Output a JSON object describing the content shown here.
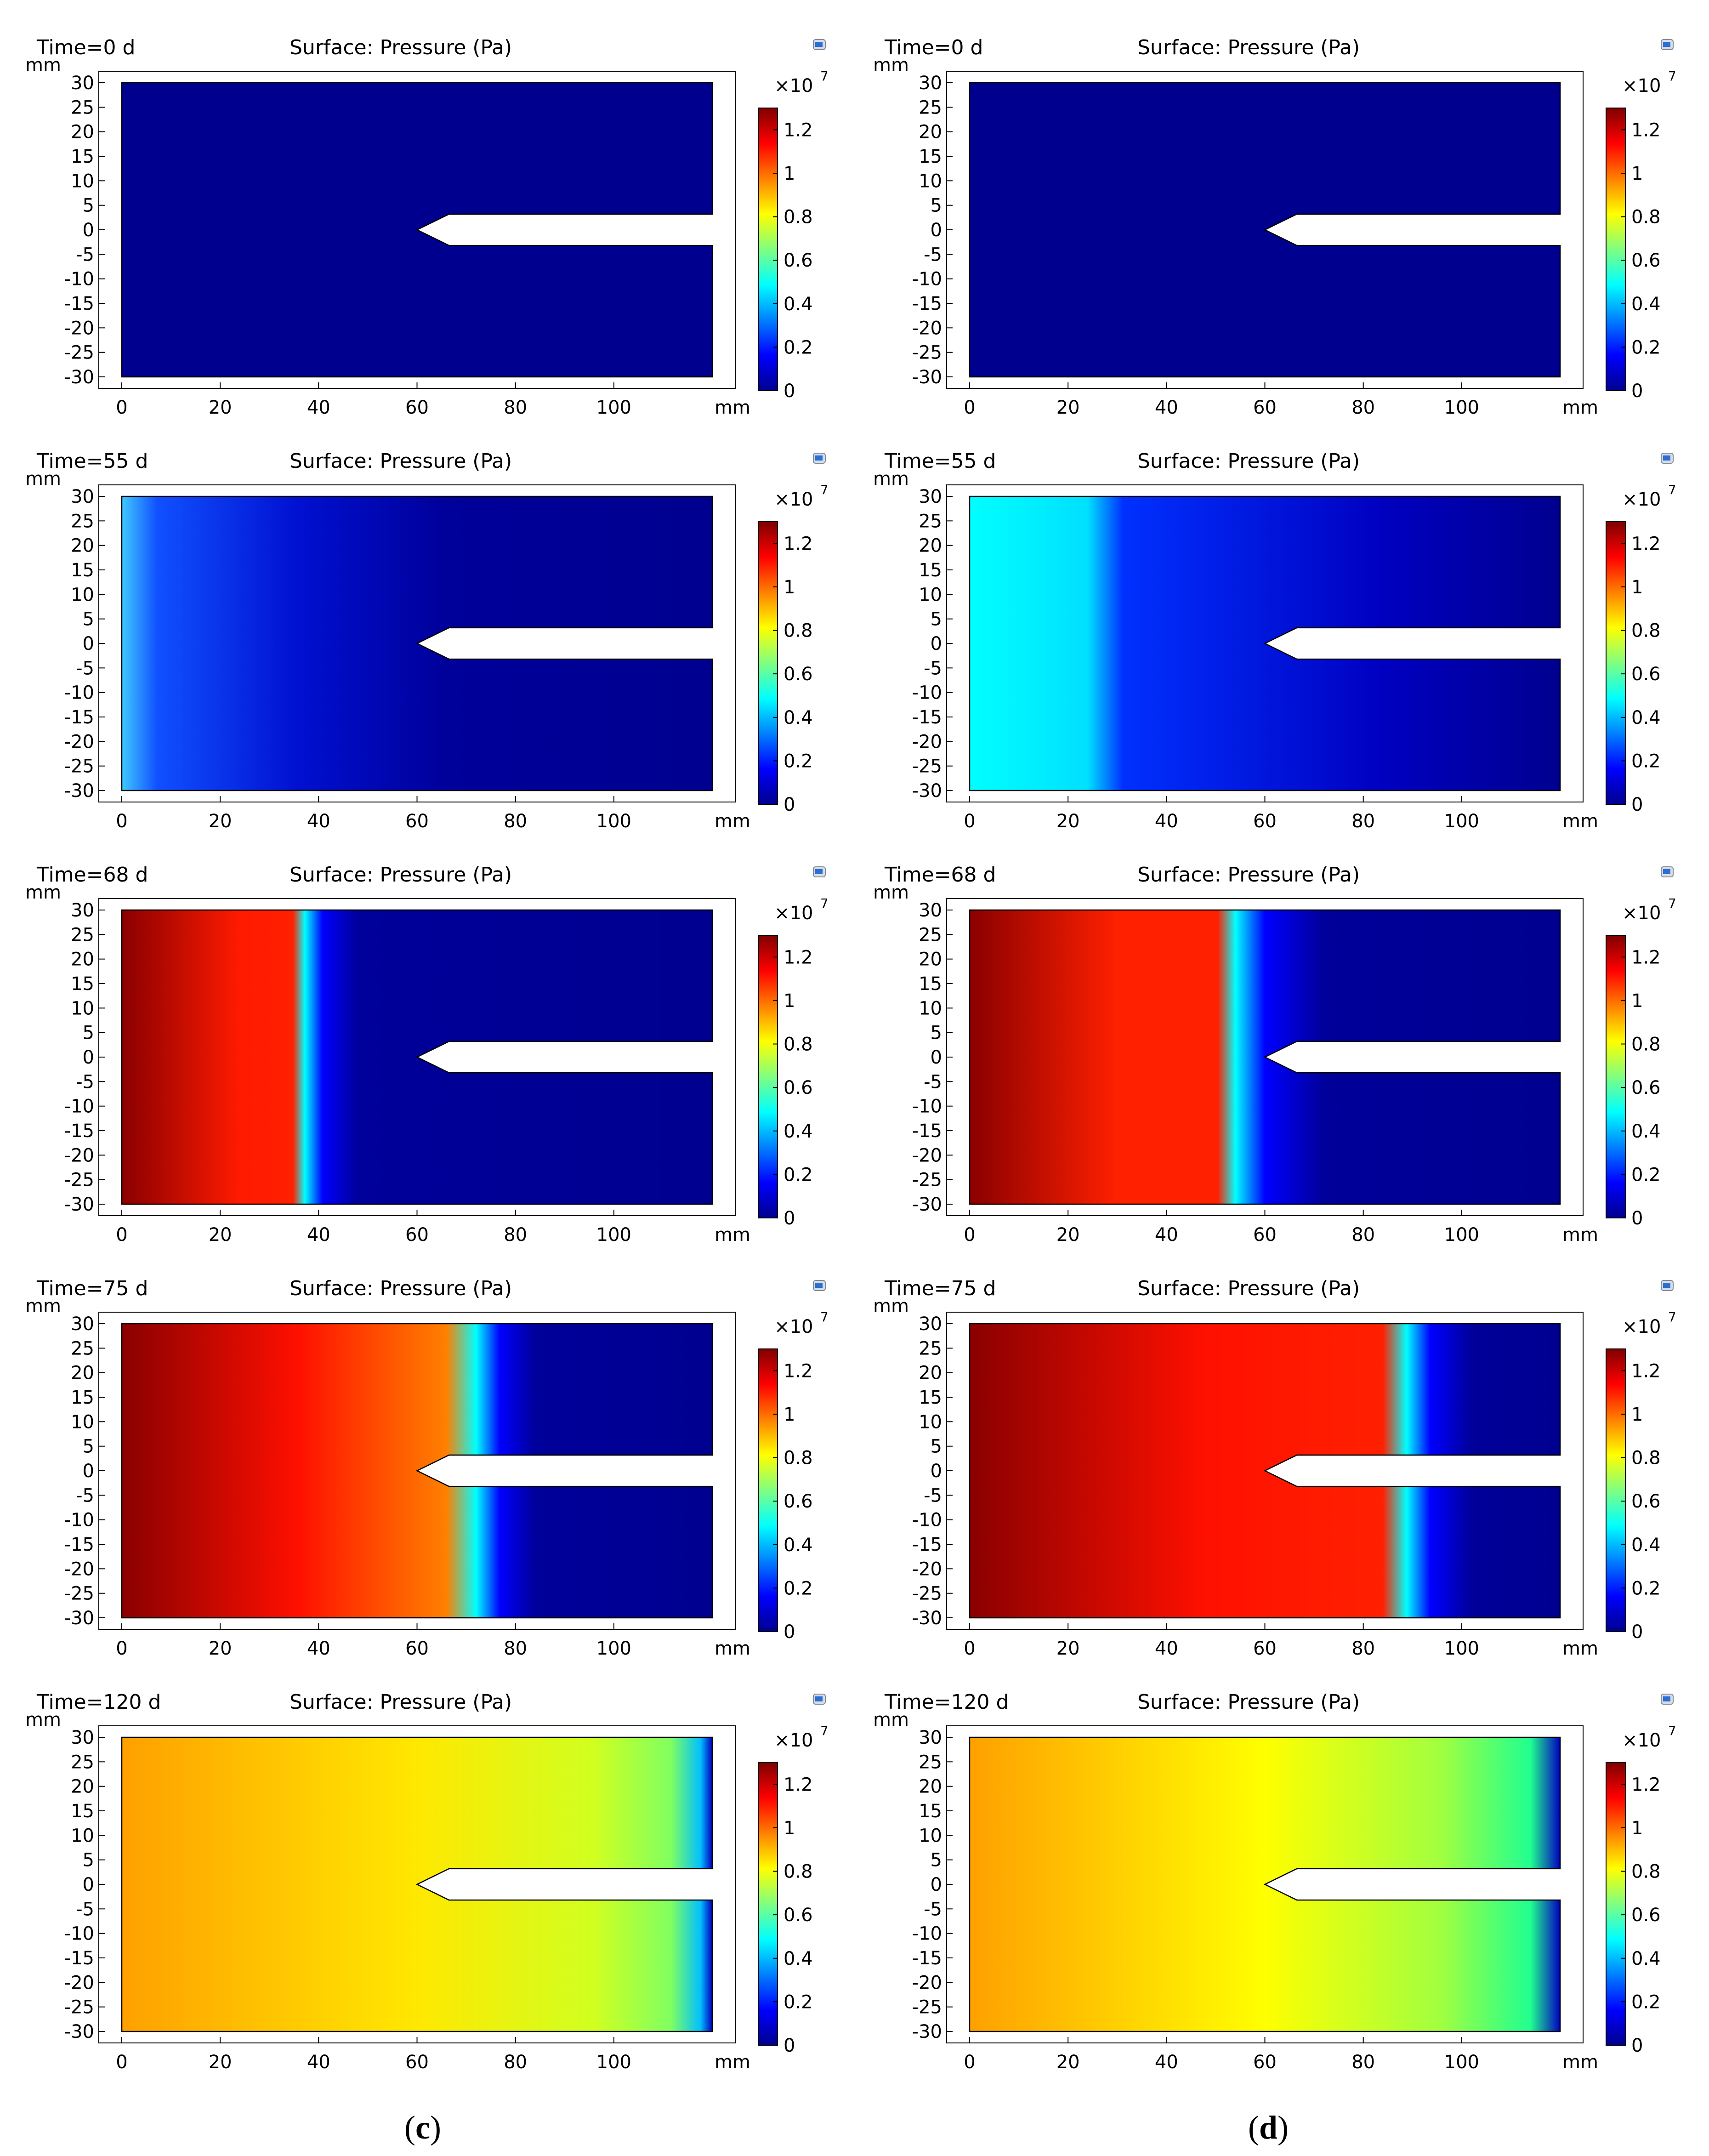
{
  "header_time_prefix": "Time=",
  "header_surface": "Surface: Pressure (Pa)",
  "axis_unit": "mm",
  "y_ticks": [
    "30",
    "25",
    "20",
    "15",
    "10",
    "5",
    "0",
    "-5",
    "-10",
    "-15",
    "-20",
    "-25",
    "-30"
  ],
  "x_ticks": [
    "0",
    "20",
    "40",
    "60",
    "80",
    "100"
  ],
  "colorbar": {
    "exponent_base": "×10",
    "exponent_power": "7",
    "ticks": [
      "1.2",
      "1",
      "0.8",
      "0.6",
      "0.4",
      "0.2",
      "0"
    ],
    "colors": [
      "#7f0000",
      "#ff0000",
      "#ff8000",
      "#ffff00",
      "#80ff80",
      "#00ffff",
      "#0080ff",
      "#0000ff",
      "#00008f"
    ]
  },
  "icon": "toolbar-icon",
  "columns": [
    {
      "caption": "c",
      "rows": [
        {
          "time": "0 d"
        },
        {
          "time": "55 d"
        },
        {
          "time": "68 d"
        },
        {
          "time": "75 d"
        },
        {
          "time": "120 d"
        }
      ]
    },
    {
      "caption": "d",
      "rows": [
        {
          "time": "0 d"
        },
        {
          "time": "55 d"
        },
        {
          "time": "68 d"
        },
        {
          "time": "75 d"
        },
        {
          "time": "120 d"
        }
      ]
    }
  ]
}
